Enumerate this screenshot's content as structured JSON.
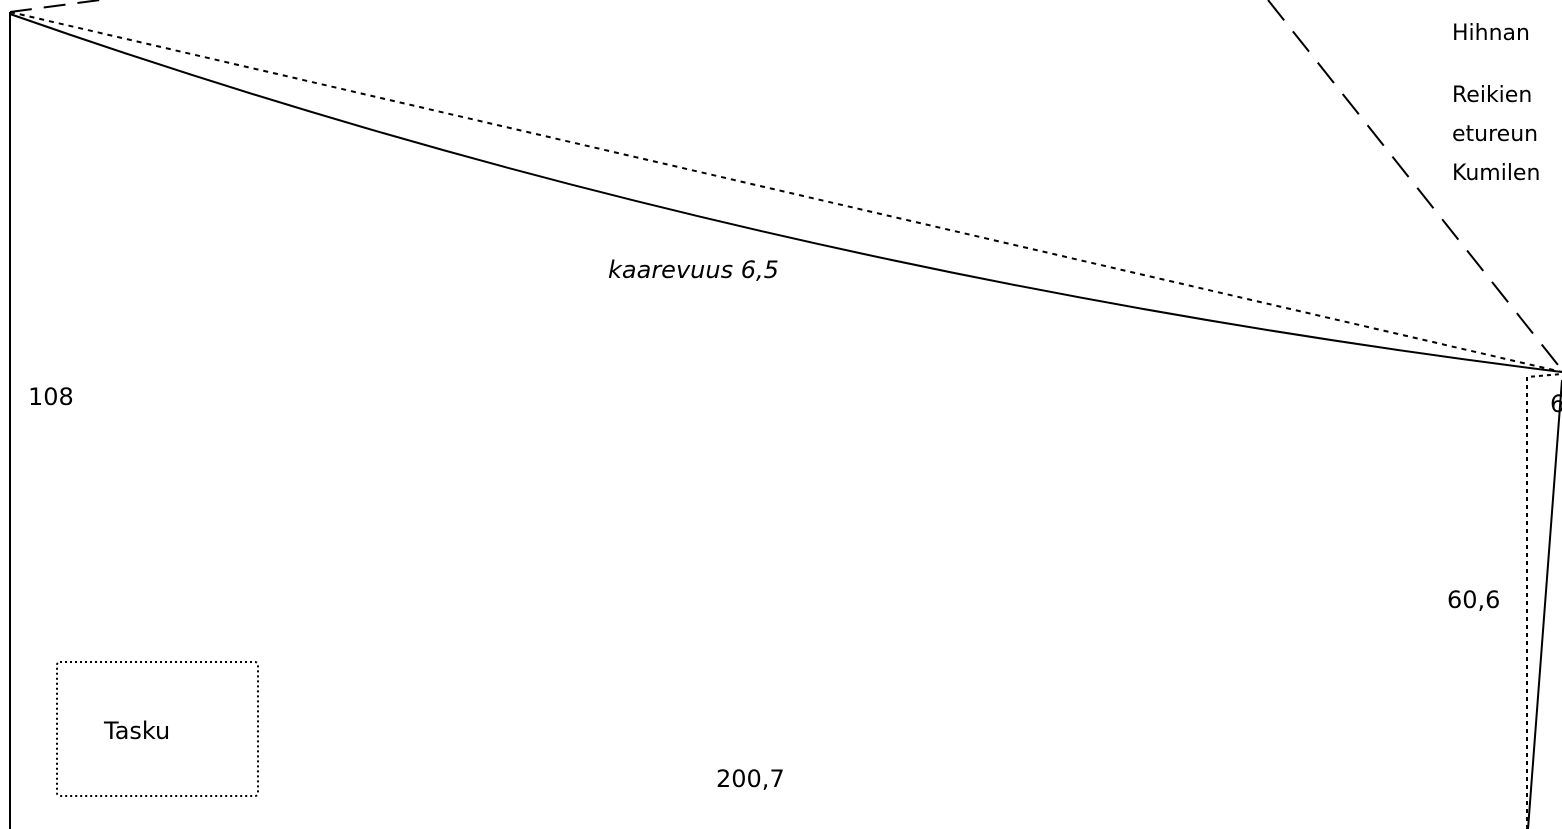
{
  "labels": {
    "curvature": "kaarevuus 6,5",
    "height_left": "108",
    "height_right": "60,6",
    "corner_cut": "6",
    "bottom_width": "200,7",
    "pocket": "Tasku"
  },
  "notes": [
    "Hihnan",
    "Reikien",
    "etureun",
    "Kumilen"
  ],
  "colors": {
    "line": "#000000",
    "background": "#ffffff"
  }
}
